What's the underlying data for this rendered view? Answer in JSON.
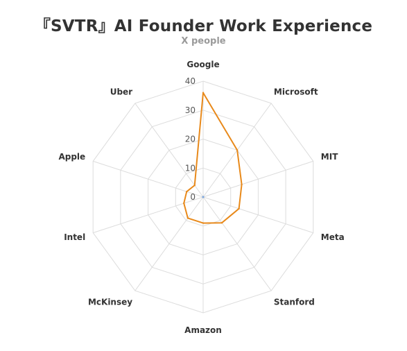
{
  "chart_data": {
    "type": "radar",
    "title": "『SVTR』AI Founder Work Experience",
    "subtitle": "X people",
    "categories": [
      "Google",
      "Microsoft",
      "MIT",
      "Meta",
      "Stanford",
      "Amazon",
      "McKinsey",
      "Intel",
      "Apple",
      "Uber"
    ],
    "series": [
      {
        "values": [
          36,
          20,
          14,
          13,
          11,
          9,
          9,
          7,
          6,
          5
        ]
      }
    ],
    "radial_ticks": [
      0,
      10,
      20,
      30,
      40
    ],
    "rmax": 40,
    "grid": true,
    "line_color": "#e8891a",
    "grid_color": "#dcdcdc"
  }
}
